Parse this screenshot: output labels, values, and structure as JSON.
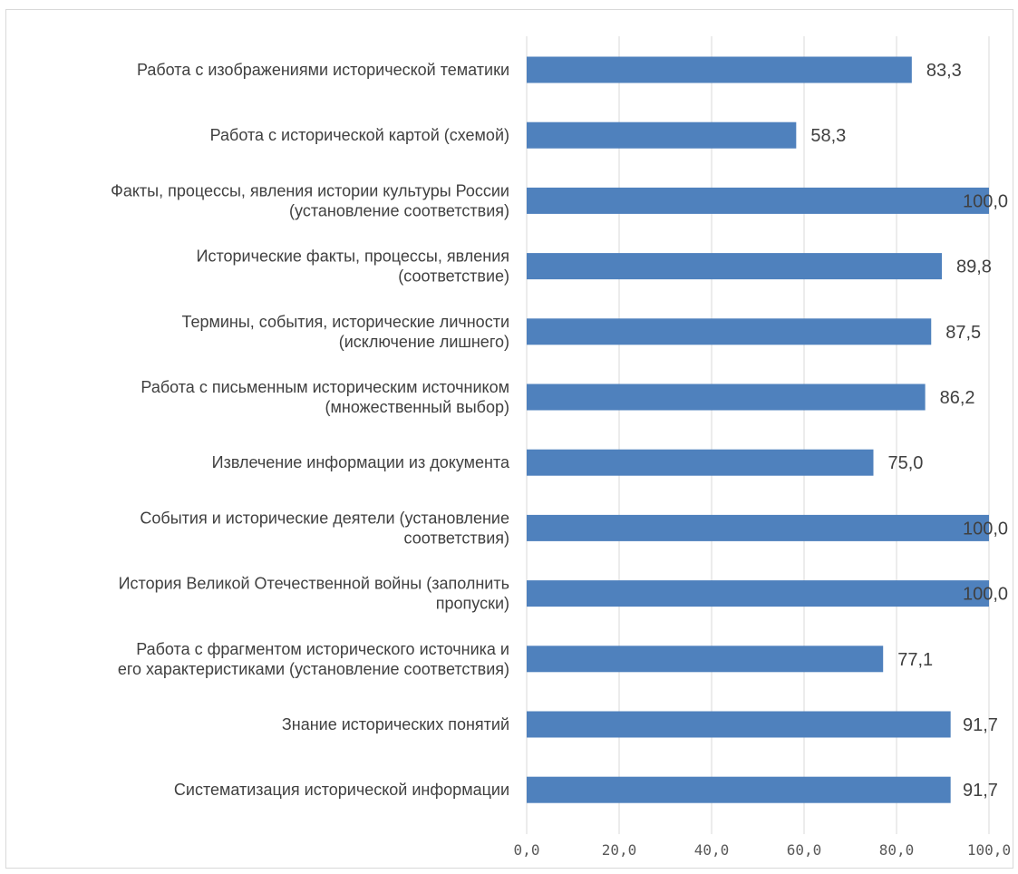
{
  "chart_data": {
    "type": "bar",
    "orientation": "horizontal",
    "title": "",
    "xlabel": "",
    "ylabel": "",
    "xlim": [
      0,
      100
    ],
    "x_ticks": [
      "0,0",
      "20,0",
      "40,0",
      "60,0",
      "80,0",
      "100,0"
    ],
    "grid": true,
    "legend": "none",
    "bar_color": "#4f81bd",
    "categories": [
      [
        "Работа с изображениями исторической тематики"
      ],
      [
        "Работа с исторической картой (схемой)"
      ],
      [
        "Факты, процессы, явления истории культуры России",
        "(установление соответствия)"
      ],
      [
        "Исторические факты, процессы, явления",
        "(соответствие)"
      ],
      [
        "Термины, события, исторические личности",
        "(исключение лишнего)"
      ],
      [
        "Работа с письменным историческим источником",
        "(множественный выбор)"
      ],
      [
        "Извлечение информации из документа"
      ],
      [
        "События и исторические деятели (установление",
        "соответствия)"
      ],
      [
        "История Великой Отечественной войны (заполнить",
        "пропуски)"
      ],
      [
        "Работа с фрагментом исторического источника и",
        "его характеристиками (установление соответствия)"
      ],
      [
        "Знание исторических понятий"
      ],
      [
        "Систематизация исторической информации"
      ]
    ],
    "values": [
      83.3,
      58.3,
      100.0,
      89.8,
      87.5,
      86.2,
      75.0,
      100.0,
      100.0,
      77.1,
      91.7,
      91.7
    ],
    "value_labels": [
      "83,3",
      "58,3",
      "100,0",
      "89,8",
      "87,5",
      "86,2",
      "75,0",
      "100,0",
      "100,0",
      "77,1",
      "91,7",
      "91,7"
    ]
  }
}
